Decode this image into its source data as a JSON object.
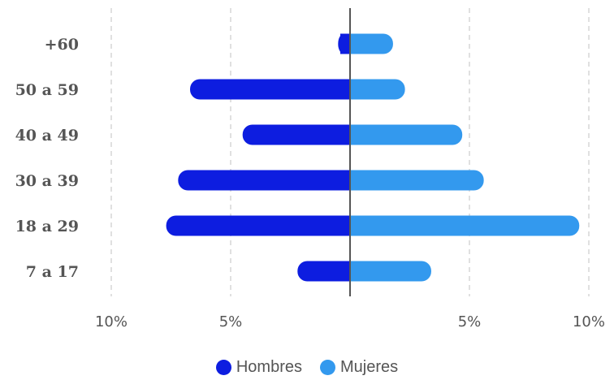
{
  "chart_data": {
    "type": "bar",
    "orientation": "horizontal",
    "subtype": "population-pyramid",
    "categories": [
      "+60",
      "50 a 59",
      "40 a 49",
      "30 a 39",
      "18 a 29",
      "7 a 17"
    ],
    "series": [
      {
        "name": "Hombres",
        "color": "#0d1de0",
        "values": [
          0.5,
          6.7,
          4.5,
          7.2,
          7.7,
          2.2
        ]
      },
      {
        "name": "Mujeres",
        "color": "#3399ee",
        "values": [
          1.8,
          2.3,
          4.7,
          5.6,
          9.6,
          3.4
        ]
      }
    ],
    "x_ticks": [
      {
        "value": -10,
        "label": "10%"
      },
      {
        "value": -5,
        "label": "5%"
      },
      {
        "value": 5,
        "label": "5%"
      },
      {
        "value": 10,
        "label": "10%"
      }
    ],
    "xlim": [
      -10,
      10
    ],
    "grid": true,
    "legend_position": "bottom"
  },
  "legend": {
    "hombres": "Hombres",
    "mujeres": "Mujeres"
  }
}
